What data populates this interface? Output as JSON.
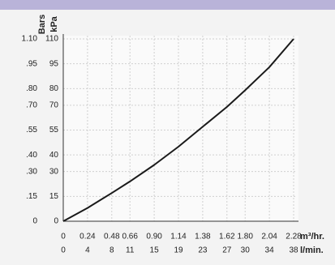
{
  "chart_data": {
    "type": "line",
    "ylabel": "kPa",
    "y2label": "Bars",
    "xlabel": "m³/hr.",
    "x2label": "l/min.",
    "x": [
      0,
      0.24,
      0.48,
      0.66,
      0.9,
      1.14,
      1.38,
      1.62,
      1.8,
      2.04,
      2.28
    ],
    "values": [
      0,
      8,
      17,
      24,
      34,
      45,
      57,
      69,
      79,
      93,
      110
    ],
    "color": "#1a1a1a",
    "xlim": [
      0,
      2.28
    ],
    "xticks": [
      0,
      0.24,
      0.48,
      0.66,
      {
        "value": 0.9,
        "label": "0.90"
      },
      1.14,
      1.38,
      1.62,
      {
        "value": 1.8,
        "label": "1.80"
      },
      2.04,
      2.28
    ],
    "x2lim": [
      0,
      38
    ],
    "x2ticks": [
      0,
      4,
      8,
      11,
      15,
      19,
      23,
      27,
      30,
      34,
      38
    ],
    "ylim": [
      0,
      110
    ],
    "yticks": [
      0,
      15,
      30,
      40,
      55,
      70,
      80,
      95,
      110
    ],
    "y2lim": [
      0,
      1.1
    ],
    "y2ticks": [
      0,
      {
        "value": 0.15,
        "label": ".15"
      },
      {
        "value": 0.3,
        "label": ".30"
      },
      {
        "value": 0.4,
        "label": ".40"
      },
      {
        "value": 0.55,
        "label": ".55"
      },
      {
        "value": 0.7,
        "label": ".70"
      },
      {
        "value": 0.8,
        "label": ".80"
      },
      {
        "value": 0.95,
        "label": ".95"
      },
      {
        "value": 1.1,
        "label": "1.10"
      }
    ],
    "grid": true
  }
}
